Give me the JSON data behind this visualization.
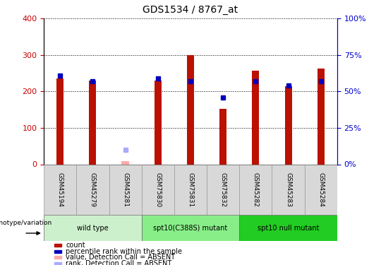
{
  "title": "GDS1534 / 8767_at",
  "samples": [
    "GSM45194",
    "GSM45279",
    "GSM45281",
    "GSM75830",
    "GSM75831",
    "GSM75832",
    "GSM45282",
    "GSM45283",
    "GSM45284"
  ],
  "count_values": [
    235,
    230,
    8,
    230,
    300,
    152,
    257,
    215,
    262
  ],
  "rank_values": [
    61,
    57,
    null,
    59,
    57,
    46,
    57,
    54,
    57
  ],
  "absent_count": [
    null,
    null,
    8,
    null,
    null,
    null,
    null,
    null,
    null
  ],
  "absent_rank": [
    null,
    null,
    10,
    null,
    null,
    null,
    null,
    null,
    null
  ],
  "groups": [
    {
      "label": "wild type",
      "start": 0,
      "end": 3,
      "color": "#ccf0cc"
    },
    {
      "label": "spt10(C388S) mutant",
      "start": 3,
      "end": 6,
      "color": "#88ee88"
    },
    {
      "label": "spt10 null mutant",
      "start": 6,
      "end": 9,
      "color": "#22cc22"
    }
  ],
  "left_axis_color": "#cc0000",
  "right_axis_color": "#0000cc",
  "ylim_left": [
    0,
    400
  ],
  "ylim_right": [
    0,
    100
  ],
  "yticks_left": [
    0,
    100,
    200,
    300,
    400
  ],
  "ytick_labels_left": [
    "0",
    "100",
    "200",
    "300",
    "400"
  ],
  "yticks_right": [
    0,
    25,
    50,
    75,
    100
  ],
  "ytick_labels_right": [
    "0%",
    "25%",
    "50%",
    "75%",
    "100%"
  ],
  "count_color": "#bb1100",
  "rank_color": "#0000bb",
  "absent_count_color": "#ffaaaa",
  "absent_rank_color": "#aaaaff",
  "legend_items": [
    {
      "label": "count",
      "color": "#bb1100"
    },
    {
      "label": "percentile rank within the sample",
      "color": "#0000bb"
    },
    {
      "label": "value, Detection Call = ABSENT",
      "color": "#ffaaaa"
    },
    {
      "label": "rank, Detection Call = ABSENT",
      "color": "#aaaaff"
    }
  ],
  "genotype_label": "genotype/variation",
  "sample_box_color": "#d8d8d8",
  "sample_box_edge": "#999999"
}
